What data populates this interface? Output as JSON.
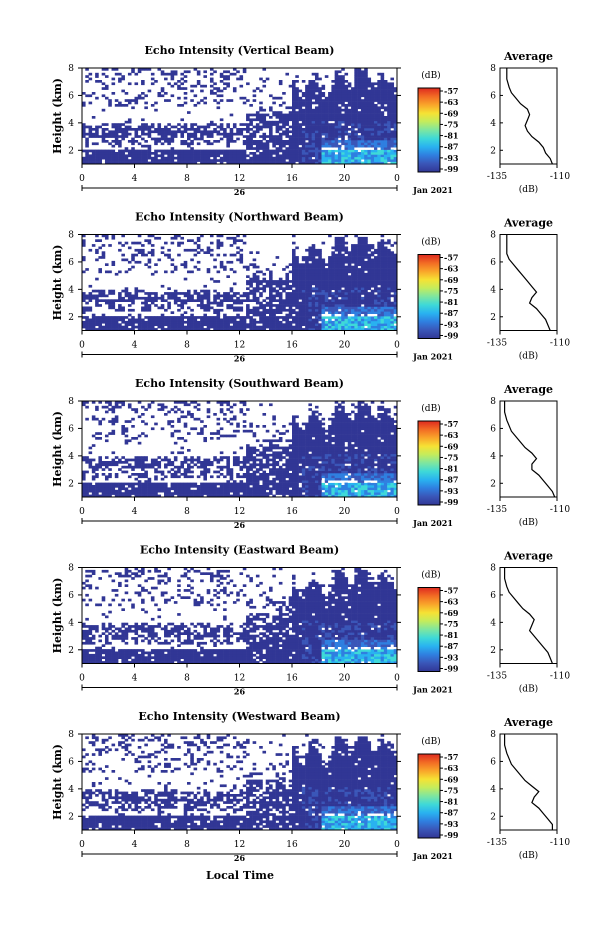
{
  "figure": {
    "xlabel": "Local Time",
    "date_label": "Jan 2021",
    "day_label": "26",
    "colorbar_unit": "(dB)",
    "colorbar_ticks": [
      "-57",
      "-63",
      "-69",
      "-75",
      "-81",
      "-87",
      "-93",
      "-99"
    ],
    "colorscale": [
      "#313695",
      "#3a56b8",
      "#2f7fe0",
      "#29b2f0",
      "#3ed9d8",
      "#7ee6a0",
      "#c4ec5c",
      "#f6e234",
      "#f9a52a",
      "#f26b24",
      "#de2a1f"
    ],
    "side_title": "Average",
    "side_xlabel": "(dB)",
    "side_xticks": [
      "-135",
      "-110"
    ]
  },
  "chart_data": [
    {
      "type": "heatmap",
      "title": "Echo Intensity (Vertical Beam)",
      "ylabel": "Height (km)",
      "xticks": [
        "0",
        "4",
        "8",
        "12",
        "16",
        "20",
        "0"
      ],
      "yticks": [
        "2",
        "4",
        "6",
        "8"
      ],
      "xlim": [
        0,
        24
      ],
      "ylim": [
        1,
        8
      ],
      "colorbar": {
        "label": "(dB)",
        "range": [
          -99,
          -57
        ]
      },
      "profile": {
        "title": "Average",
        "xlabel": "(dB)",
        "xlim": [
          -135,
          -110
        ],
        "ylim": [
          1,
          8
        ],
        "x": [
          -112,
          -113,
          -115,
          -116,
          -118,
          -121,
          -123,
          -124,
          -123,
          -122,
          -123,
          -126,
          -128,
          -130,
          -131,
          -132,
          -132
        ],
        "y": [
          1.0,
          1.4,
          1.8,
          2.2,
          2.6,
          3.0,
          3.4,
          3.8,
          4.2,
          4.6,
          5.0,
          5.4,
          5.8,
          6.2,
          6.6,
          7.2,
          8.0
        ]
      }
    },
    {
      "type": "heatmap",
      "title": "Echo Intensity (Northward Beam)",
      "ylabel": "Height (km)",
      "xticks": [
        "0",
        "4",
        "8",
        "12",
        "16",
        "20",
        "0"
      ],
      "yticks": [
        "2",
        "4",
        "6",
        "8"
      ],
      "xlim": [
        0,
        24
      ],
      "ylim": [
        1,
        8
      ],
      "colorbar": {
        "label": "(dB)",
        "range": [
          -99,
          -57
        ]
      },
      "profile": {
        "title": "Average",
        "xlabel": "(dB)",
        "xlim": [
          -135,
          -110
        ],
        "ylim": [
          1,
          8
        ],
        "x": [
          -113,
          -114,
          -115,
          -117,
          -119,
          -122,
          -121,
          -119,
          -121,
          -123,
          -125,
          -127,
          -129,
          -131,
          -132,
          -132,
          -132
        ],
        "y": [
          1.0,
          1.4,
          1.8,
          2.2,
          2.6,
          3.0,
          3.4,
          3.8,
          4.2,
          4.6,
          5.0,
          5.4,
          5.8,
          6.2,
          6.6,
          7.2,
          8.0
        ]
      }
    },
    {
      "type": "heatmap",
      "title": "Echo Intensity (Southward Beam)",
      "ylabel": "Height (km)",
      "xticks": [
        "0",
        "4",
        "8",
        "12",
        "16",
        "20",
        "0"
      ],
      "yticks": [
        "2",
        "4",
        "6",
        "8"
      ],
      "xlim": [
        0,
        24
      ],
      "ylim": [
        1,
        8
      ],
      "colorbar": {
        "label": "(dB)",
        "range": [
          -99,
          -57
        ]
      },
      "profile": {
        "title": "Average",
        "xlabel": "(dB)",
        "xlim": [
          -135,
          -110
        ],
        "ylim": [
          1,
          8
        ],
        "x": [
          -111,
          -112,
          -114,
          -116,
          -118,
          -121,
          -121,
          -119,
          -121,
          -124,
          -126,
          -128,
          -130,
          -131,
          -132,
          -133,
          -133
        ],
        "y": [
          1.0,
          1.4,
          1.8,
          2.2,
          2.6,
          3.0,
          3.4,
          3.8,
          4.2,
          4.6,
          5.0,
          5.4,
          5.8,
          6.2,
          6.6,
          7.2,
          8.0
        ]
      }
    },
    {
      "type": "heatmap",
      "title": "Echo Intensity (Eastward Beam)",
      "ylabel": "Height (km)",
      "xticks": [
        "0",
        "4",
        "8",
        "12",
        "16",
        "20",
        "0"
      ],
      "yticks": [
        "2",
        "4",
        "6",
        "8"
      ],
      "xlim": [
        0,
        24
      ],
      "ylim": [
        1,
        8
      ],
      "colorbar": {
        "label": "(dB)",
        "range": [
          -99,
          -57
        ]
      },
      "profile": {
        "title": "Average",
        "xlabel": "(dB)",
        "xlim": [
          -135,
          -110
        ],
        "ylim": [
          1,
          8
        ],
        "x": [
          -112,
          -113,
          -114,
          -116,
          -118,
          -120,
          -122,
          -121,
          -120,
          -122,
          -125,
          -127,
          -129,
          -131,
          -132,
          -133,
          -133
        ],
        "y": [
          1.0,
          1.4,
          1.8,
          2.2,
          2.6,
          3.0,
          3.4,
          3.8,
          4.2,
          4.6,
          5.0,
          5.4,
          5.8,
          6.2,
          6.6,
          7.2,
          8.0
        ]
      }
    },
    {
      "type": "heatmap",
      "title": "Echo Intensity (Westward Beam)",
      "ylabel": "Height (km)",
      "xticks": [
        "0",
        "4",
        "8",
        "12",
        "16",
        "20",
        "0"
      ],
      "yticks": [
        "2",
        "4",
        "6",
        "8"
      ],
      "xlim": [
        0,
        24
      ],
      "ylim": [
        1,
        8
      ],
      "colorbar": {
        "label": "(dB)",
        "range": [
          -99,
          -57
        ]
      },
      "profile": {
        "title": "Average",
        "xlabel": "(dB)",
        "xlim": [
          -135,
          -110
        ],
        "ylim": [
          1,
          8
        ],
        "x": [
          -112,
          -112,
          -114,
          -116,
          -118,
          -121,
          -120,
          -118,
          -121,
          -124,
          -126,
          -128,
          -130,
          -131,
          -132,
          -133,
          -133
        ],
        "y": [
          1.0,
          1.4,
          1.8,
          2.2,
          2.6,
          3.0,
          3.4,
          3.8,
          4.2,
          4.6,
          5.0,
          5.4,
          5.8,
          6.2,
          6.6,
          7.2,
          8.0
        ]
      }
    }
  ]
}
